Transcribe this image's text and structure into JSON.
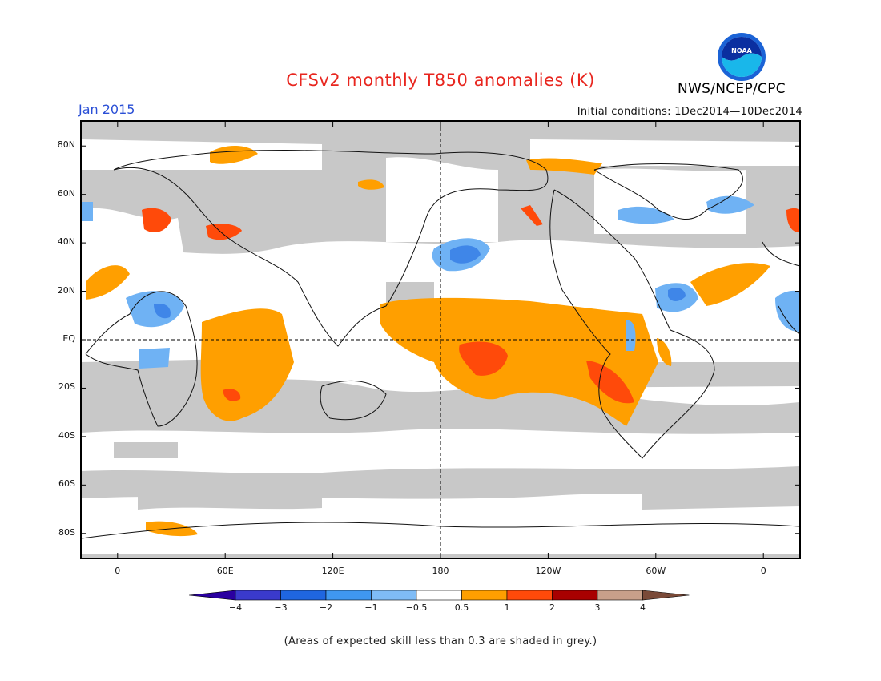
{
  "title": "CFSv2 monthly T850 anomalies (K)",
  "period": "Jan 2015",
  "initial_conditions": "Initial conditions: 1Dec2014—10Dec2014",
  "agency": "NWS/NCEP/CPC",
  "logo_text": "NOAA",
  "note": "(Areas of expected skill less than 0.3 are shaded in grey.)",
  "map": {
    "lat_labels": [
      {
        "text": "80N",
        "lat": 80
      },
      {
        "text": "60N",
        "lat": 60
      },
      {
        "text": "40N",
        "lat": 40
      },
      {
        "text": "20N",
        "lat": 20
      },
      {
        "text": "EQ",
        "lat": 0
      },
      {
        "text": "20S",
        "lat": -20
      },
      {
        "text": "40S",
        "lat": -40
      },
      {
        "text": "60S",
        "lat": -60
      },
      {
        "text": "80S",
        "lat": -80
      }
    ],
    "lon_labels": [
      {
        "text": "0",
        "lon": 0
      },
      {
        "text": "60E",
        "lon": 60
      },
      {
        "text": "120E",
        "lon": 120
      },
      {
        "text": "180",
        "lon": 180
      },
      {
        "text": "120W",
        "lon": 240
      },
      {
        "text": "60W",
        "lon": 300
      },
      {
        "text": "0",
        "lon": 360
      }
    ],
    "lon_range": [
      -20,
      380
    ],
    "lat_range": [
      -90,
      90
    ],
    "reference_lines": [
      "EQ",
      "180"
    ],
    "grey_color": "#c8c8c8"
  },
  "colorbar": {
    "colors": [
      "#2a00a0",
      "#3a3acc",
      "#1f66e0",
      "#3f97f0",
      "#7fbcf6",
      "#ffffff",
      "#ff9f00",
      "#ff4a0a",
      "#a80000",
      "#c8a08a",
      "#7a4a38"
    ],
    "labels": [
      "−4",
      "−3",
      "−2",
      "−1",
      "−0.5",
      "0.5",
      "1",
      "2",
      "3",
      "4"
    ]
  }
}
